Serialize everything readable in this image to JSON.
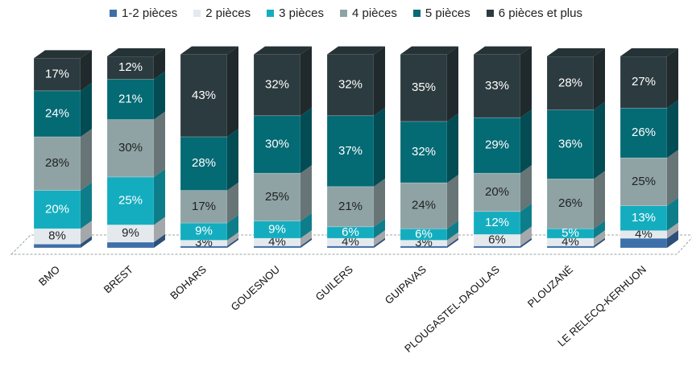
{
  "chart_data": {
    "type": "bar",
    "stacked": true,
    "three_d": true,
    "categories": [
      "BMO",
      "BREST",
      "BOHARS",
      "GOUESNOU",
      "GUILERS",
      "GUIPAVAS",
      "PLOUGASTEL-DAOULAS",
      "PLOUZANÉ",
      "LE RELECQ-KERHUON"
    ],
    "series": [
      {
        "name": "1-2 pièces",
        "color": "#3d6fa8",
        "values": [
          2,
          3,
          1,
          1,
          1,
          1,
          1,
          1,
          5
        ],
        "labels": [
          "",
          "",
          "",
          "",
          "",
          "",
          "",
          "",
          ""
        ]
      },
      {
        "name": "2 pièces",
        "color": "#e4e9ee",
        "values": [
          8,
          9,
          3,
          4,
          4,
          3,
          6,
          4,
          4
        ],
        "labels": [
          "8%",
          "9%",
          "3%",
          "4%",
          "4%",
          "3%",
          "6%",
          "4%",
          "4%"
        ]
      },
      {
        "name": "3 pièces",
        "color": "#14adbf",
        "values": [
          20,
          25,
          9,
          9,
          6,
          6,
          12,
          5,
          13
        ],
        "labels": [
          "20%",
          "25%",
          "9%",
          "9%",
          "6%",
          "6%",
          "12%",
          "5%",
          "13%"
        ]
      },
      {
        "name": "4 pièces",
        "color": "#8fa3a5",
        "values": [
          28,
          30,
          17,
          25,
          21,
          24,
          20,
          26,
          25
        ],
        "labels": [
          "28%",
          "30%",
          "17%",
          "25%",
          "21%",
          "24%",
          "20%",
          "26%",
          "25%"
        ]
      },
      {
        "name": "5 pièces",
        "color": "#046a74",
        "values": [
          24,
          21,
          28,
          30,
          37,
          32,
          29,
          36,
          26
        ],
        "labels": [
          "24%",
          "21%",
          "28%",
          "30%",
          "37%",
          "32%",
          "29%",
          "36%",
          "26%"
        ]
      },
      {
        "name": "6 pièces et plus",
        "color": "#2c3b3f",
        "values": [
          17,
          12,
          43,
          32,
          32,
          35,
          33,
          28,
          27
        ],
        "labels": [
          "17%",
          "12%",
          "43%",
          "32%",
          "32%",
          "35%",
          "33%",
          "28%",
          "27%"
        ]
      }
    ],
    "ylim": [
      0,
      100
    ],
    "legend_position": "top",
    "grid": false
  }
}
